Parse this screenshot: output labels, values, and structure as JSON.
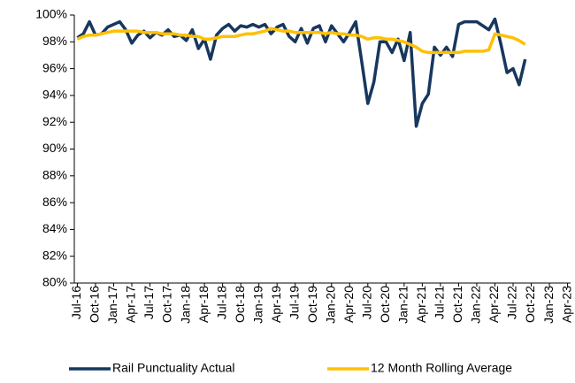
{
  "chart_data": {
    "type": "line",
    "categories": [
      "Jul-16",
      null,
      null,
      "Oct-16",
      null,
      null,
      "Jan-17",
      null,
      null,
      "Apr-17",
      null,
      null,
      "Jul-17",
      null,
      null,
      "Oct-17",
      null,
      null,
      "Jan-18",
      null,
      null,
      "Apr-18",
      null,
      null,
      "Jul-18",
      null,
      null,
      "Oct-18",
      null,
      null,
      "Jan-19",
      null,
      null,
      "Apr-19",
      null,
      null,
      "Jul-19",
      null,
      null,
      "Oct-19",
      null,
      null,
      "Jan-20",
      null,
      null,
      "Apr-20",
      null,
      null,
      "Jul-20",
      null,
      null,
      "Oct-20",
      null,
      null,
      "Jan-21",
      null,
      null,
      "Apr-21",
      null,
      null,
      "Jul-21",
      null,
      null,
      "Oct-21",
      null,
      null,
      "Jan-22",
      null,
      null,
      "Apr-22",
      null,
      null,
      "Jul-22",
      null,
      null,
      "Oct-22",
      null,
      null,
      "Jan-23",
      null,
      null,
      "Apr-23"
    ],
    "series": [
      {
        "name": "Rail Punctuality Actual",
        "color": "#17375e",
        "values": [
          98.3,
          98.6,
          99.5,
          98.5,
          98.6,
          99.1,
          99.3,
          99.5,
          98.9,
          97.9,
          98.5,
          98.8,
          98.3,
          98.7,
          98.5,
          98.9,
          98.4,
          98.5,
          98.1,
          98.9,
          97.5,
          98.2,
          96.7,
          98.5,
          99.0,
          99.3,
          98.8,
          99.2,
          99.1,
          99.3,
          99.1,
          99.3,
          98.6,
          99.1,
          99.3,
          98.4,
          98.0,
          99.0,
          97.9,
          99.0,
          99.2,
          98.0,
          99.2,
          98.6,
          98.0,
          98.7,
          99.5,
          96.5,
          93.4,
          95.0,
          98.0,
          98.0,
          97.2,
          98.2,
          96.6,
          98.7,
          91.7,
          93.4,
          94.1,
          97.6,
          97.0,
          97.6,
          96.9,
          99.3,
          99.5,
          99.5,
          99.5,
          99.2,
          98.9,
          99.7,
          97.8,
          95.7,
          96.0,
          94.8,
          96.7,
          null,
          null,
          null,
          null,
          null,
          null,
          null
        ]
      },
      {
        "name": "12 Month Rolling Average",
        "color": "#ffc000",
        "values": [
          98.2,
          98.4,
          98.5,
          98.5,
          98.6,
          98.7,
          98.8,
          98.8,
          98.8,
          98.8,
          98.8,
          98.7,
          98.7,
          98.7,
          98.6,
          98.6,
          98.6,
          98.5,
          98.5,
          98.4,
          98.4,
          98.2,
          98.2,
          98.3,
          98.4,
          98.4,
          98.4,
          98.5,
          98.6,
          98.6,
          98.7,
          98.8,
          99.0,
          98.9,
          98.8,
          98.8,
          98.7,
          98.7,
          98.7,
          98.7,
          98.7,
          98.6,
          98.7,
          98.6,
          98.6,
          98.5,
          98.5,
          98.4,
          98.2,
          98.3,
          98.3,
          98.2,
          98.2,
          98.1,
          98.0,
          97.8,
          97.6,
          97.3,
          97.2,
          97.2,
          97.2,
          97.2,
          97.2,
          97.2,
          97.3,
          97.3,
          97.3,
          97.3,
          97.4,
          98.6,
          98.5,
          98.4,
          98.3,
          98.1,
          97.8,
          null,
          null,
          null,
          null,
          null,
          null,
          null
        ]
      }
    ],
    "ylim": [
      80,
      100
    ],
    "yticks": [
      {
        "value": 80,
        "label": "80%"
      },
      {
        "value": 82,
        "label": "82%"
      },
      {
        "value": 84,
        "label": "84%"
      },
      {
        "value": 86,
        "label": "86%"
      },
      {
        "value": 88,
        "label": "88%"
      },
      {
        "value": 90,
        "label": "90%"
      },
      {
        "value": 92,
        "label": "92%"
      },
      {
        "value": 94,
        "label": "94%"
      },
      {
        "value": 96,
        "label": "96%"
      },
      {
        "value": 98,
        "label": "98%"
      },
      {
        "value": 100,
        "label": "100%"
      }
    ],
    "grid": false,
    "legend": "bottom"
  }
}
